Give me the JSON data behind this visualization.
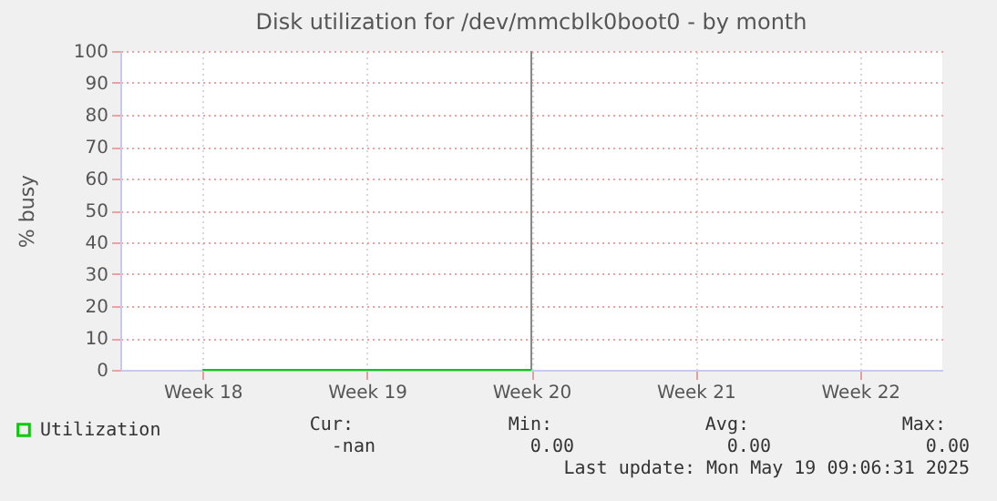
{
  "chart_data": {
    "type": "line",
    "title": "Disk utilization for /dev/mmcblk0boot0 - by month",
    "ylabel": "% busy",
    "categories": [
      "Week 18",
      "Week 19",
      "Week 20",
      "Week 21",
      "Week 22"
    ],
    "series": [
      {
        "name": "Utilization",
        "color": "#00cc00",
        "values": [
          0,
          0,
          0,
          null,
          null
        ]
      }
    ],
    "ylim": [
      0,
      100
    ],
    "yticks": [
      0,
      10,
      20,
      30,
      40,
      50,
      60,
      70,
      80,
      90,
      100
    ],
    "grid": true,
    "legend": "bottom left",
    "ref_lines": [
      {
        "axis": "x",
        "value": "Week 20",
        "color": "#888888"
      }
    ],
    "annotations": [
      "Cur:",
      "Min:",
      "Avg:",
      "Max:",
      "-nan",
      "0.00",
      "0.00",
      "0.00",
      "Last update: Mon May 19 09:06:31 2025"
    ]
  }
}
